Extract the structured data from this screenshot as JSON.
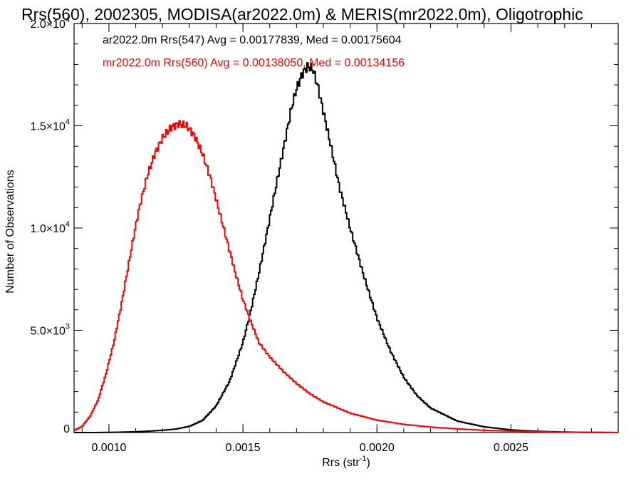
{
  "chart_data": {
    "type": "line",
    "title": "Rrs(560), 2002305, MODISA(ar2022.0m) & MERIS(mr2022.0m), Oligotrophic",
    "xlabel": {
      "base": "Rrs (str",
      "sup": "-1",
      "end": ")"
    },
    "ylabel": "Number of Observations",
    "xlim": [
      0.00087,
      0.0029
    ],
    "ylim": [
      0,
      20000
    ],
    "grid": false,
    "xticks": [
      {
        "value": 0.001,
        "label": "0.0010"
      },
      {
        "value": 0.0015,
        "label": "0.0015"
      },
      {
        "value": 0.002,
        "label": "0.0020"
      },
      {
        "value": 0.0025,
        "label": "0.0025"
      }
    ],
    "yticks": [
      {
        "value": 0,
        "mant": "0",
        "exp": ""
      },
      {
        "value": 5000,
        "mant": "5.0×10",
        "exp": "3"
      },
      {
        "value": 10000,
        "mant": "1.0×10",
        "exp": "4"
      },
      {
        "value": 15000,
        "mant": "1.5×10",
        "exp": "4"
      },
      {
        "value": 20000,
        "mant": "2.0×10",
        "exp": "4"
      }
    ],
    "series": [
      {
        "label": "ar2022.0m Rrs(547) Avg = 0.00177839, Med = 0.00175604",
        "color": "#000000",
        "x": [
          0.00087,
          0.0009,
          0.00095,
          0.001,
          0.00105,
          0.0011,
          0.00115,
          0.0012,
          0.00125,
          0.0013,
          0.00135,
          0.0014,
          0.00145,
          0.0015,
          0.00153,
          0.00156,
          0.00159,
          0.00162,
          0.00165,
          0.00168,
          0.0017,
          0.00172,
          0.00174,
          0.00176,
          0.00178,
          0.0018,
          0.00183,
          0.00186,
          0.0019,
          0.00195,
          0.002,
          0.00205,
          0.0021,
          0.00215,
          0.0022,
          0.0023,
          0.0024,
          0.0025,
          0.0026,
          0.0027,
          0.0028,
          0.0029
        ],
        "y": [
          0,
          0,
          0,
          10,
          20,
          40,
          70,
          110,
          170,
          300,
          600,
          1300,
          2500,
          4400,
          6000,
          7800,
          9800,
          11800,
          13800,
          15800,
          16800,
          17500,
          17900,
          17800,
          16900,
          15700,
          13900,
          12000,
          10000,
          7700,
          5600,
          4000,
          2700,
          1800,
          1200,
          560,
          280,
          130,
          60,
          25,
          10,
          0
        ]
      },
      {
        "label": "mr2022.0m Rrs(560) Avg = 0.00138050, Med = 0.00134156",
        "color": "#ff0000",
        "x": [
          0.00087,
          0.0009,
          0.00093,
          0.00096,
          0.00099,
          0.00102,
          0.00105,
          0.00108,
          0.00111,
          0.00114,
          0.00117,
          0.0012,
          0.00123,
          0.00126,
          0.00129,
          0.00132,
          0.00135,
          0.00138,
          0.00141,
          0.00144,
          0.00147,
          0.0015,
          0.00153,
          0.00156,
          0.0016,
          0.00165,
          0.0017,
          0.00175,
          0.0018,
          0.0019,
          0.002,
          0.0021,
          0.0022,
          0.0023,
          0.0024,
          0.0025,
          0.0026,
          0.0027,
          0.0028,
          0.0029
        ],
        "y": [
          100,
          300,
          800,
          1600,
          2900,
          4500,
          6500,
          8700,
          10800,
          12400,
          13600,
          14400,
          14900,
          15100,
          15000,
          14500,
          13600,
          12400,
          10900,
          9400,
          7900,
          6500,
          5400,
          4400,
          3700,
          3000,
          2400,
          1900,
          1500,
          950,
          610,
          400,
          270,
          180,
          110,
          70,
          40,
          20,
          8,
          0
        ]
      }
    ]
  }
}
